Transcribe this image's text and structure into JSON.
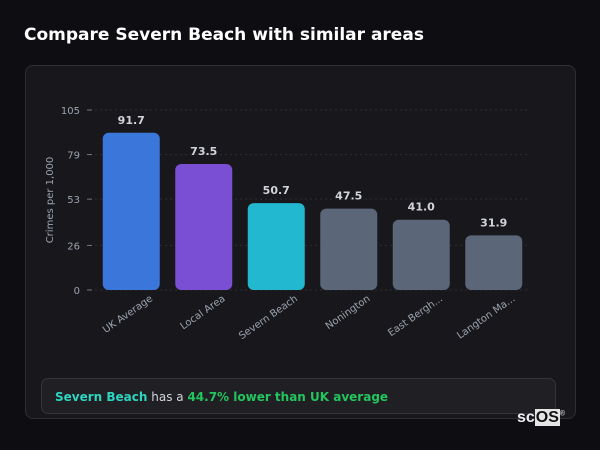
{
  "title": "Compare Severn Beach with similar areas",
  "chart_data": {
    "type": "bar",
    "ylabel": "Crimes per 1,000",
    "ylim": [
      0,
      105
    ],
    "yticks": [
      0,
      26,
      53,
      79,
      105
    ],
    "grid": true,
    "categories": [
      "UK Average",
      "Local Area",
      "Severn Beach",
      "Nonington",
      "East Bergh...",
      "Langton Ma..."
    ],
    "values": [
      91.7,
      73.5,
      50.7,
      47.5,
      41.0,
      31.9
    ],
    "value_labels": [
      "91.7",
      "73.5",
      "50.7",
      "47.5",
      "41.0",
      "31.9"
    ],
    "colors": [
      "#3b76db",
      "#7b4fd4",
      "#22b8cf",
      "#5b6679",
      "#5b6679",
      "#5b6679"
    ]
  },
  "footer": {
    "area": "Severn Beach",
    "middle": " has a ",
    "comparison": "44.7% lower than UK average",
    "area_color": "#2dd4bf",
    "comparison_color": "#22c55e"
  },
  "logo": {
    "text_sc": "sc",
    "text_os": "OS",
    "mark": "®"
  }
}
